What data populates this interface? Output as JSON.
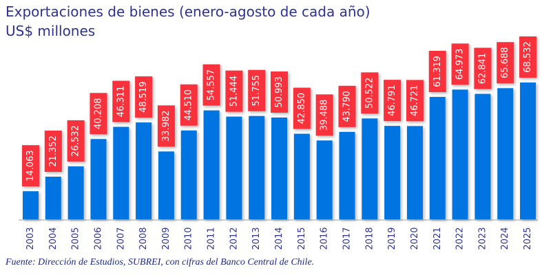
{
  "chart_data": {
    "type": "bar",
    "title": "Exportaciones de bienes (enero-agosto de cada año)",
    "subtitle": "US$ millones",
    "source": "Fuente: Dirección de Estudios, SUBREI, con cifras del Banco Central de Chile.",
    "categories": [
      "2003",
      "2004",
      "2005",
      "2006",
      "2007",
      "2008",
      "2009",
      "2010",
      "2011",
      "2012",
      "2013",
      "2014",
      "2015",
      "2016",
      "2017",
      "2018",
      "2019",
      "2020",
      "2021",
      "2022",
      "2023",
      "2024",
      "2025"
    ],
    "values": [
      14063,
      21352,
      26532,
      40208,
      46311,
      48519,
      33982,
      44510,
      54557,
      51444,
      51755,
      50993,
      42850,
      39488,
      43790,
      50522,
      46791,
      46721,
      61319,
      64973,
      62841,
      65688,
      68532
    ],
    "data_labels": [
      "14.063",
      "21.352",
      "26.532",
      "40.208",
      "46.311",
      "48.519",
      "33.982",
      "44.510",
      "54.557",
      "51.444",
      "51.755",
      "50.993",
      "42.850",
      "39.488",
      "43.790",
      "50.522",
      "46.791",
      "46.721",
      "61.319",
      "64.973",
      "62.841",
      "65.688",
      "68.532"
    ],
    "xlabel": "",
    "ylabel": "",
    "ylim": [
      0,
      70000
    ],
    "grid": false,
    "colors": {
      "bar": "#0075e2",
      "label_box": "#f8303e",
      "label_text": "#ffffff",
      "text": "#2e3192"
    }
  }
}
